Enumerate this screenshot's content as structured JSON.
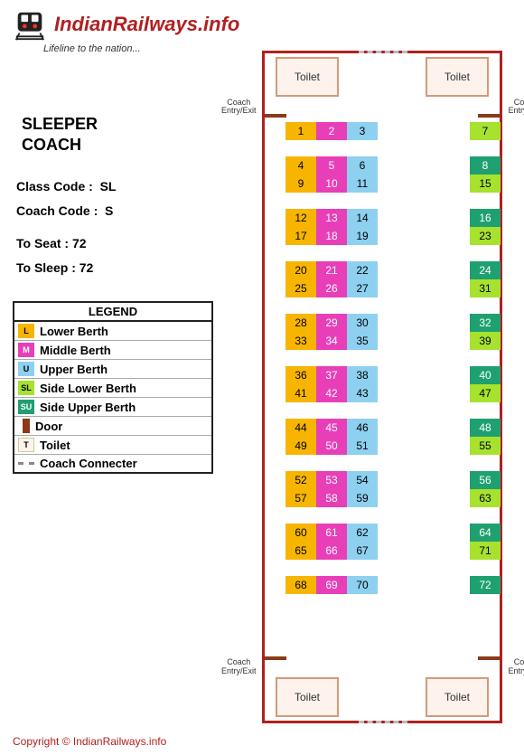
{
  "site": {
    "name": "IndianRailways.info",
    "tagline": "Lifeline to the nation..."
  },
  "coach": {
    "title_l1": "SLEEPER",
    "title_l2": "COACH",
    "class_code_lbl": "Class Code :",
    "class_code": "SL",
    "coach_code_lbl": "Coach Code :",
    "coach_code": "S",
    "to_seat_lbl": "To Seat :",
    "to_seat": "72",
    "to_sleep_lbl": "To Sleep :",
    "to_sleep": "72"
  },
  "labels": {
    "toilet": "Toilet",
    "entry": "Coach\nEntry/Exit",
    "legend_title": "LEGEND",
    "door": "Door",
    "connector": "Coach Connecter"
  },
  "legend": [
    {
      "code": "L",
      "label": "Lower Berth",
      "bg": "#f7b500",
      "fg": "#000"
    },
    {
      "code": "M",
      "label": "Middle Berth",
      "bg": "#e83fb8",
      "fg": "#fff"
    },
    {
      "code": "U",
      "label": "Upper Berth",
      "bg": "#8ed0f0",
      "fg": "#000"
    },
    {
      "code": "SL",
      "label": "Side Lower Berth",
      "bg": "#a6e22e",
      "fg": "#000"
    },
    {
      "code": "SU",
      "label": "Side Upper Berth",
      "bg": "#1fa071",
      "fg": "#fff"
    },
    {
      "code": "T",
      "label": "Toilet",
      "bg": "#fdf3ec",
      "fg": "#000"
    }
  ],
  "colors": {
    "L": {
      "bg": "#f7b500",
      "fg": "#000"
    },
    "M": {
      "bg": "#e83fb8",
      "fg": "#fff"
    },
    "U": {
      "bg": "#8ed0f0",
      "fg": "#000"
    },
    "SL": {
      "bg": "#a6e22e",
      "fg": "#000"
    },
    "SU": {
      "bg": "#1fa071",
      "fg": "#fff"
    }
  },
  "bays": [
    {
      "r1": [
        {
          "n": 1,
          "t": "L"
        },
        {
          "n": 2,
          "t": "M"
        },
        {
          "n": 3,
          "t": "U"
        }
      ],
      "s1": {
        "n": 7,
        "t": "SL"
      },
      "r2": null,
      "s2": null,
      "gap_below": 18,
      "half": true
    },
    {
      "r1": [
        {
          "n": 4,
          "t": "L"
        },
        {
          "n": 5,
          "t": "M"
        },
        {
          "n": 6,
          "t": "U"
        }
      ],
      "s1": {
        "n": 8,
        "t": "SU"
      },
      "r2": [
        {
          "n": 9,
          "t": "L"
        },
        {
          "n": 10,
          "t": "M"
        },
        {
          "n": 11,
          "t": "U"
        }
      ],
      "s2": {
        "n": 15,
        "t": "SL"
      },
      "gap_below": 18
    },
    {
      "r1": [
        {
          "n": 12,
          "t": "L"
        },
        {
          "n": 13,
          "t": "M"
        },
        {
          "n": 14,
          "t": "U"
        }
      ],
      "s1": {
        "n": 16,
        "t": "SU"
      },
      "r2": [
        {
          "n": 17,
          "t": "L"
        },
        {
          "n": 18,
          "t": "M"
        },
        {
          "n": 19,
          "t": "U"
        }
      ],
      "s2": {
        "n": 23,
        "t": "SL"
      },
      "gap_below": 18
    },
    {
      "r1": [
        {
          "n": 20,
          "t": "L"
        },
        {
          "n": 21,
          "t": "M"
        },
        {
          "n": 22,
          "t": "U"
        }
      ],
      "s1": {
        "n": 24,
        "t": "SU"
      },
      "r2": [
        {
          "n": 25,
          "t": "L"
        },
        {
          "n": 26,
          "t": "M"
        },
        {
          "n": 27,
          "t": "U"
        }
      ],
      "s2": {
        "n": 31,
        "t": "SL"
      },
      "gap_below": 18
    },
    {
      "r1": [
        {
          "n": 28,
          "t": "L"
        },
        {
          "n": 29,
          "t": "M"
        },
        {
          "n": 30,
          "t": "U"
        }
      ],
      "s1": {
        "n": 32,
        "t": "SU"
      },
      "r2": [
        {
          "n": 33,
          "t": "L"
        },
        {
          "n": 34,
          "t": "M"
        },
        {
          "n": 35,
          "t": "U"
        }
      ],
      "s2": {
        "n": 39,
        "t": "SL"
      },
      "gap_below": 18
    },
    {
      "r1": [
        {
          "n": 36,
          "t": "L"
        },
        {
          "n": 37,
          "t": "M"
        },
        {
          "n": 38,
          "t": "U"
        }
      ],
      "s1": {
        "n": 40,
        "t": "SU"
      },
      "r2": [
        {
          "n": 41,
          "t": "L"
        },
        {
          "n": 42,
          "t": "M"
        },
        {
          "n": 43,
          "t": "U"
        }
      ],
      "s2": {
        "n": 47,
        "t": "SL"
      },
      "gap_below": 18
    },
    {
      "r1": [
        {
          "n": 44,
          "t": "L"
        },
        {
          "n": 45,
          "t": "M"
        },
        {
          "n": 46,
          "t": "U"
        }
      ],
      "s1": {
        "n": 48,
        "t": "SU"
      },
      "r2": [
        {
          "n": 49,
          "t": "L"
        },
        {
          "n": 50,
          "t": "M"
        },
        {
          "n": 51,
          "t": "U"
        }
      ],
      "s2": {
        "n": 55,
        "t": "SL"
      },
      "gap_below": 18
    },
    {
      "r1": [
        {
          "n": 52,
          "t": "L"
        },
        {
          "n": 53,
          "t": "M"
        },
        {
          "n": 54,
          "t": "U"
        }
      ],
      "s1": {
        "n": 56,
        "t": "SU"
      },
      "r2": [
        {
          "n": 57,
          "t": "L"
        },
        {
          "n": 58,
          "t": "M"
        },
        {
          "n": 59,
          "t": "U"
        }
      ],
      "s2": {
        "n": 63,
        "t": "SL"
      },
      "gap_below": 18
    },
    {
      "r1": [
        {
          "n": 60,
          "t": "L"
        },
        {
          "n": 61,
          "t": "M"
        },
        {
          "n": 62,
          "t": "U"
        }
      ],
      "s1": {
        "n": 64,
        "t": "SU"
      },
      "r2": [
        {
          "n": 65,
          "t": "L"
        },
        {
          "n": 66,
          "t": "M"
        },
        {
          "n": 67,
          "t": "U"
        }
      ],
      "s2": {
        "n": 71,
        "t": "SL"
      },
      "gap_below": 18
    },
    {
      "r1": [
        {
          "n": 68,
          "t": "L"
        },
        {
          "n": 69,
          "t": "M"
        },
        {
          "n": 70,
          "t": "U"
        }
      ],
      "s1": {
        "n": 72,
        "t": "SU"
      },
      "r2": null,
      "s2": null,
      "half": true
    }
  ],
  "footer": "Copyright © IndianRailways.info"
}
